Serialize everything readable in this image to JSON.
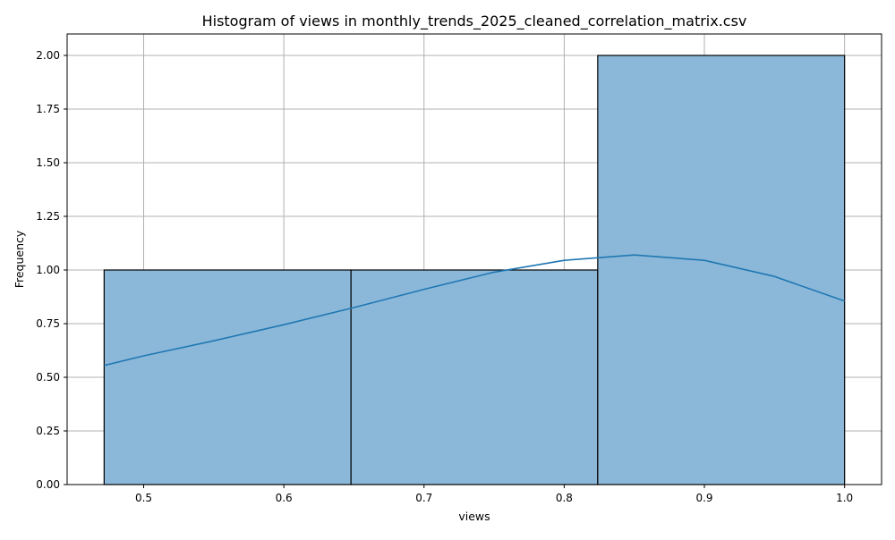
{
  "chart_data": {
    "type": "bar",
    "title": "Histogram of views in monthly_trends_2025_cleaned_correlation_matrix.csv",
    "xlabel": "views",
    "ylabel": "Frequency",
    "bins": [
      {
        "start": 0.4718,
        "end": 0.6479,
        "value": 1
      },
      {
        "start": 0.6479,
        "end": 0.8239,
        "value": 1
      },
      {
        "start": 0.8239,
        "end": 1.0,
        "value": 2
      }
    ],
    "kde_curve": {
      "x": [
        0.4718,
        0.5,
        0.55,
        0.6,
        0.65,
        0.7,
        0.75,
        0.8,
        0.85,
        0.9,
        0.95,
        1.0
      ],
      "y": [
        0.555,
        0.6,
        0.67,
        0.745,
        0.825,
        0.91,
        0.99,
        1.045,
        1.07,
        1.045,
        0.97,
        0.855
      ]
    },
    "xlim": [
      0.4454,
      1.0264
    ],
    "ylim": [
      0,
      2.1
    ],
    "xticks": [
      "0.5",
      "0.6",
      "0.7",
      "0.8",
      "0.9",
      "1.0"
    ],
    "xtick_values": [
      0.5,
      0.6,
      0.7,
      0.8,
      0.9,
      1.0
    ],
    "yticks": [
      "0.00",
      "0.25",
      "0.50",
      "0.75",
      "1.00",
      "1.25",
      "1.50",
      "1.75",
      "2.00"
    ],
    "ytick_values": [
      0,
      0.25,
      0.5,
      0.75,
      1.0,
      1.25,
      1.5,
      1.75,
      2.0
    ],
    "grid": true,
    "colors": {
      "bar_fill": "#8bb8d8",
      "bar_edge": "#000000",
      "kde_line": "#1f77b4",
      "grid": "#b0b0b0"
    }
  }
}
